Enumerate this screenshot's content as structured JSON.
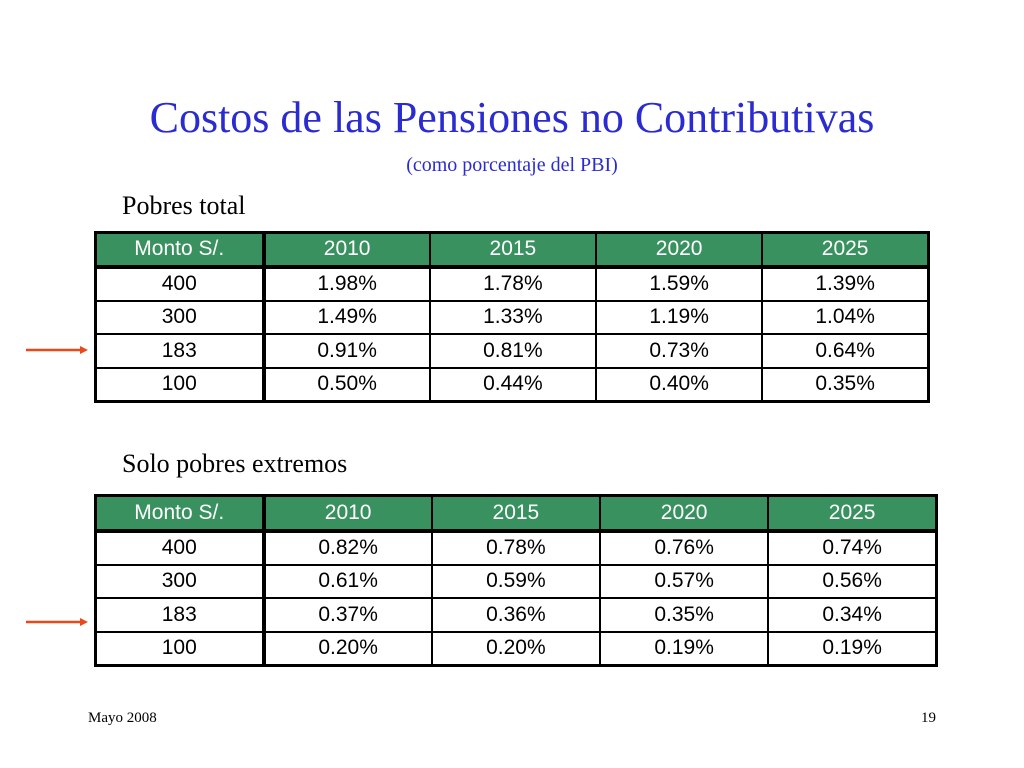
{
  "slide": {
    "title": "Costos de las Pensiones no Contributivas",
    "subtitle": "(como porcentaje del PBI)",
    "footer_left": "Mayo 2008",
    "footer_right": "19"
  },
  "tables": [
    {
      "label": "Pobres total",
      "headers": [
        "Monto S/.",
        "2010",
        "2015",
        "2020",
        "2025"
      ],
      "rows": [
        [
          "400",
          "1.98%",
          "1.78%",
          "1.59%",
          "1.39%"
        ],
        [
          "300",
          "1.49%",
          "1.33%",
          "1.19%",
          "1.04%"
        ],
        [
          "183",
          "0.91%",
          "0.81%",
          "0.73%",
          "0.64%"
        ],
        [
          "100",
          "0.50%",
          "0.44%",
          "0.40%",
          "0.35%"
        ]
      ]
    },
    {
      "label": "Solo pobres extremos",
      "headers": [
        "Monto S/.",
        "2010",
        "2015",
        "2020",
        "2025"
      ],
      "rows": [
        [
          "400",
          "0.82%",
          "0.78%",
          "0.76%",
          "0.74%"
        ],
        [
          "300",
          "0.61%",
          "0.59%",
          "0.57%",
          "0.56%"
        ],
        [
          "183",
          "0.37%",
          "0.36%",
          "0.35%",
          "0.34%"
        ],
        [
          "100",
          "0.20%",
          "0.20%",
          "0.19%",
          "0.19%"
        ]
      ]
    }
  ],
  "colors": {
    "title": "#2b2bd2",
    "header_bg": "#3a9160",
    "arrow": "#e8481a"
  }
}
